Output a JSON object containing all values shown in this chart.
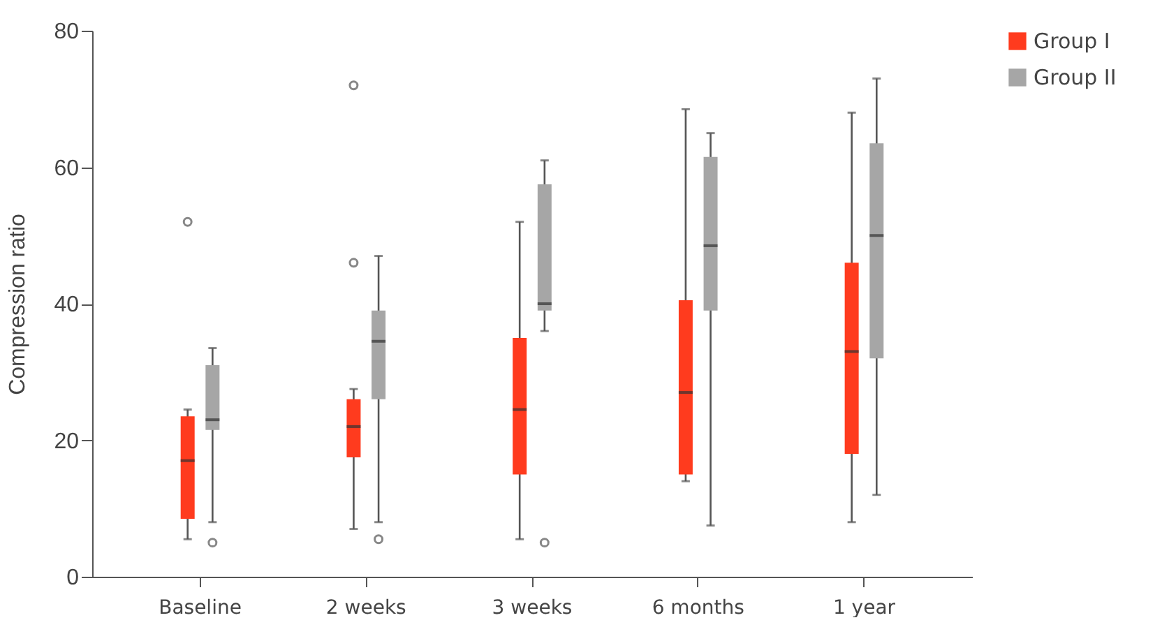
{
  "chart_data": {
    "type": "box",
    "ylabel": "Compression ratio",
    "categories": [
      "Baseline",
      "2 weeks",
      "3 weeks",
      "6 months",
      "1 year"
    ],
    "ylim": [
      0,
      80
    ],
    "yticks": [
      0,
      20,
      40,
      60,
      80
    ],
    "grid": false,
    "legend": "right",
    "series": [
      {
        "name": "Group I",
        "color": "#ff3b1e",
        "boxes": [
          {
            "low": 5.5,
            "q1": 8.5,
            "median": 17,
            "q3": 23.5,
            "high": 24.5,
            "outliers": [
              52
            ]
          },
          {
            "low": 7,
            "q1": 17.5,
            "median": 22,
            "q3": 26,
            "high": 27.5,
            "outliers": [
              72,
              46
            ]
          },
          {
            "low": 5.5,
            "q1": 15,
            "median": 24.5,
            "q3": 35,
            "high": 52
          },
          {
            "low": 14,
            "q1": 15,
            "median": 27,
            "q3": 40.5,
            "high": 68.5
          },
          {
            "low": 8,
            "q1": 18,
            "median": 33,
            "q3": 46,
            "high": 68
          }
        ]
      },
      {
        "name": "Group II",
        "color": "#a6a6a6",
        "boxes": [
          {
            "low": 8,
            "q1": 21.5,
            "median": 23,
            "q3": 31,
            "high": 33.5,
            "outliers": [
              5
            ]
          },
          {
            "low": 8,
            "q1": 26,
            "median": 34.5,
            "q3": 39,
            "high": 47,
            "outliers": [
              5.5
            ]
          },
          {
            "low": 36,
            "q1": 39,
            "median": 40,
            "q3": 57.5,
            "high": 61,
            "outliers": [
              5
            ]
          },
          {
            "low": 7.5,
            "q1": 39,
            "median": 48.5,
            "q3": 61.5,
            "high": 65
          },
          {
            "low": 12,
            "q1": 32,
            "median": 50,
            "q3": 63.5,
            "high": 73
          }
        ]
      }
    ]
  }
}
